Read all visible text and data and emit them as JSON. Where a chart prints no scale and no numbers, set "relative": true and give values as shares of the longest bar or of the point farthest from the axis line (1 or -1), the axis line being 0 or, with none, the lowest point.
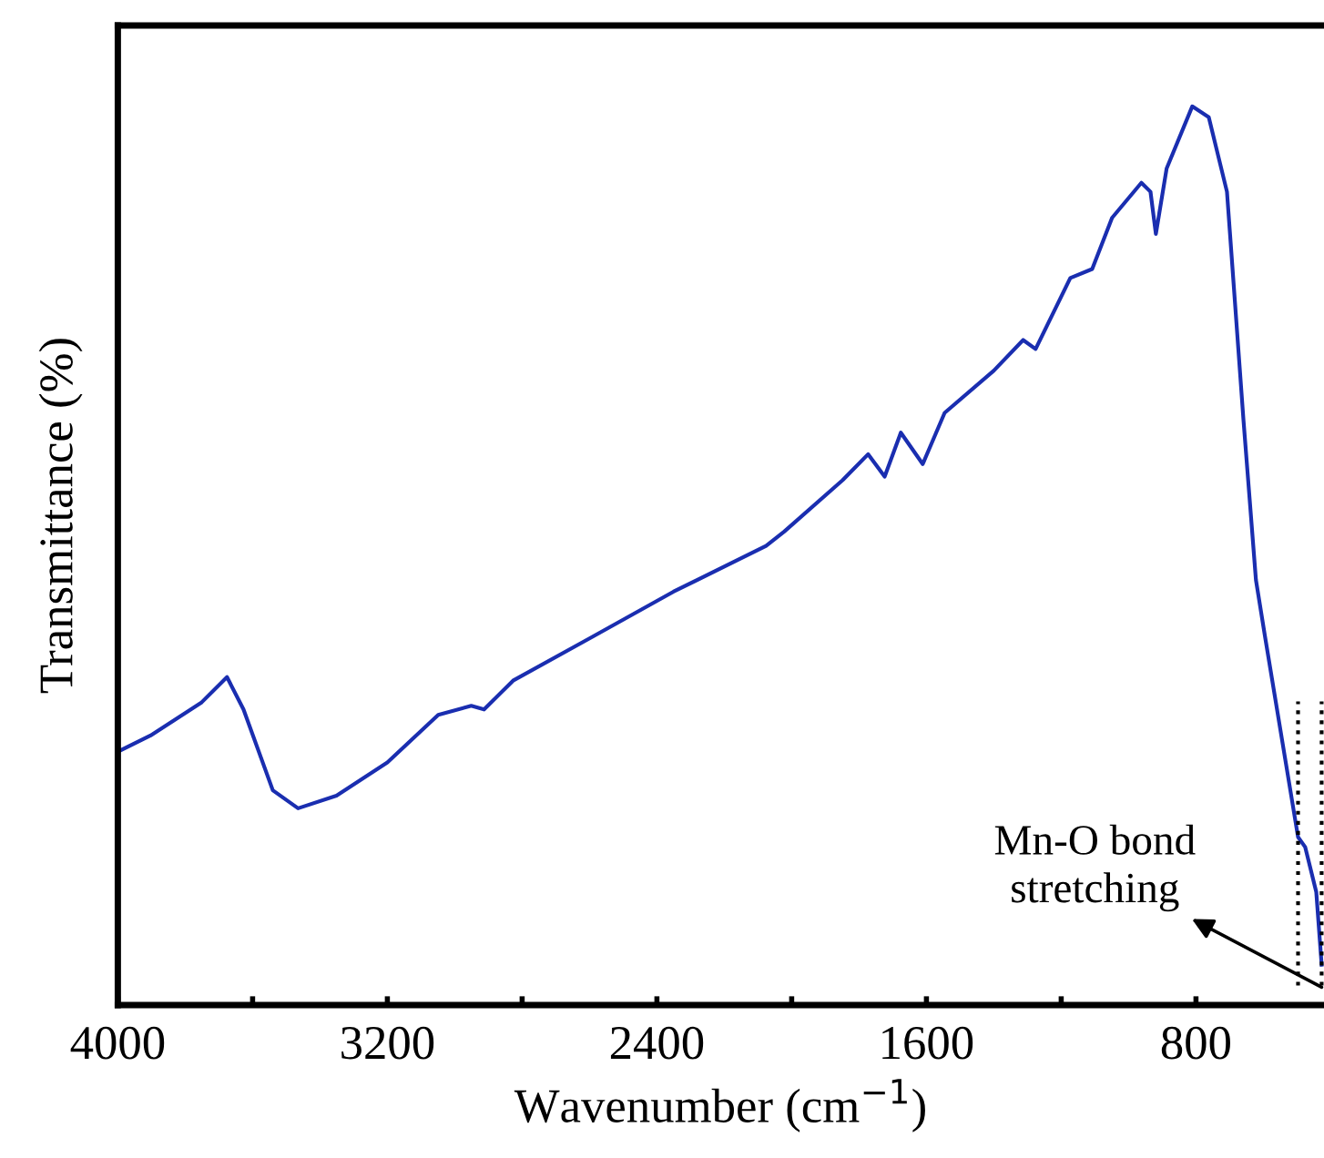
{
  "chart_data": {
    "type": "line",
    "xlabel": "Wavenumber (cm$^{−1}$)",
    "ylabel": "Transmittance (%)",
    "relative": true,
    "xlim": [
      4000,
      420
    ],
    "xticks": [
      4000,
      {
        "value": 3600,
        "label": null
      },
      3200,
      {
        "value": 2800,
        "label": null
      },
      2400,
      {
        "value": 2000,
        "label": null
      },
      1600,
      {
        "value": 1200,
        "label": null
      },
      800
    ],
    "x": [
      4000,
      3903,
      3751,
      3676,
      3627,
      3540,
      3465,
      3351,
      3200,
      3049,
      2951,
      2913,
      2827,
      2600,
      2351,
      2076,
      2022,
      1849,
      1773,
      1724,
      1676,
      1611,
      1546,
      1400,
      1313,
      1276,
      1173,
      1108,
      1049,
      962,
      935,
      919,
      887,
      811,
      762,
      708,
      659,
      622,
      595,
      497,
      476,
      443,
      427
    ],
    "series": [
      {
        "color": "#1a2eb0",
        "values": [
          0.282,
          0.3,
          0.337,
          0.365,
          0.329,
          0.239,
          0.219,
          0.233,
          0.27,
          0.323,
          0.333,
          0.329,
          0.361,
          0.408,
          0.46,
          0.511,
          0.527,
          0.584,
          0.613,
          0.588,
          0.637,
          0.602,
          0.659,
          0.706,
          0.74,
          0.73,
          0.809,
          0.819,
          0.876,
          0.915,
          0.905,
          0.858,
          0.931,
          1.0,
          0.988,
          0.905,
          0.651,
          0.473,
          0.41,
          0.187,
          0.176,
          0.126,
          0.045
        ]
      }
    ],
    "ref_lines": [
      {
        "axis": "x",
        "value": 497,
        "line_style": "dotted",
        "color": "#000000"
      },
      {
        "axis": "x",
        "value": 427,
        "line_style": "dotted",
        "color": "#000000"
      }
    ],
    "annotations": [
      {
        "text": "Mn-O bond\nstretching",
        "x": 427,
        "y": 0.02
      }
    ],
    "grid": false,
    "legend": false,
    "marker": "none",
    "line_style": "solid"
  }
}
